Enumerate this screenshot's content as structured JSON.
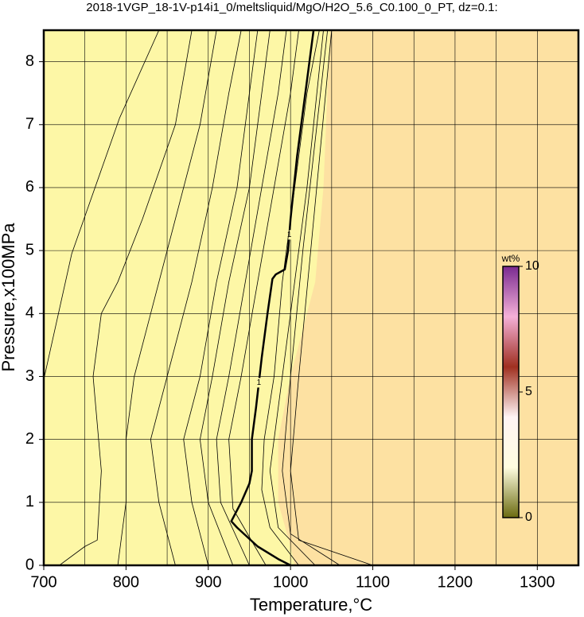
{
  "chart_data": {
    "type": "contour",
    "title": "2018-1VGP_18-1V-p14i1_0/meltsliquid/MgO/H2O_5.6_C0.100_0_PT, dz=0.1:",
    "x_label": "Temperature,°C",
    "y_label": "Pressure,x100MPa",
    "xlim": [
      700,
      1350
    ],
    "ylim": [
      0,
      8.5
    ],
    "xticks": [
      700,
      800,
      900,
      1000,
      1100,
      1200,
      1300
    ],
    "yticks": [
      0,
      1,
      2,
      3,
      4,
      5,
      6,
      7,
      8
    ],
    "x_grid": [
      750,
      850,
      950,
      1050,
      1150,
      1250,
      1350
    ],
    "grid": true,
    "background_color": "#fdf7a6",
    "regions": [
      {
        "color": "#fde1a2",
        "x": [
          1048,
          1040,
          1030,
          1000,
          985,
          985,
          1000,
          1005,
          1350,
          1350
        ],
        "y": [
          8.5,
          6,
          4.5,
          3,
          2,
          1,
          0.3,
          0,
          0,
          8.5
        ]
      }
    ],
    "contours": [
      {
        "label": "1",
        "width": 2.5,
        "x": [
          1028,
          1018,
          1008,
          1000,
          997,
          993,
          982,
          978,
          972,
          965,
          958,
          953,
          953,
          950,
          940,
          928,
          935,
          960,
          985,
          1000
        ],
        "y": [
          8.5,
          7.5,
          6.5,
          5.5,
          5.0,
          4.7,
          4.62,
          4.55,
          4.0,
          3.3,
          2.5,
          2.0,
          1.5,
          1.3,
          1.0,
          0.7,
          0.6,
          0.3,
          0.1,
          0
        ]
      },
      {
        "x": [
          700,
          734,
          792,
          840
        ],
        "y": [
          2.95,
          4.95,
          7.1,
          8.5
        ]
      },
      {
        "x": [
          719,
          750,
          765,
          770,
          760,
          770,
          790,
          820,
          860,
          880
        ],
        "y": [
          0,
          0.3,
          0.4,
          1.5,
          3,
          4,
          4.5,
          5.5,
          7,
          8.5
        ]
      },
      {
        "x": [
          790,
          800,
          800,
          810,
          830,
          860,
          890,
          910
        ],
        "y": [
          0,
          1,
          2,
          3,
          4,
          5.5,
          7,
          8.5
        ]
      },
      {
        "x": [
          860,
          840,
          830,
          850,
          880,
          905,
          925,
          940
        ],
        "y": [
          0,
          1,
          2,
          3,
          4.5,
          6,
          7.5,
          8.5
        ]
      },
      {
        "x": [
          900,
          880,
          870,
          890,
          910,
          935,
          950,
          960
        ],
        "y": [
          0,
          1,
          2,
          3,
          4.5,
          6,
          7.5,
          8.5
        ]
      },
      {
        "x": [
          930,
          900,
          890,
          905,
          925,
          950,
          965,
          975
        ],
        "y": [
          0,
          1,
          2,
          3,
          4.5,
          6,
          7.5,
          8.5
        ]
      },
      {
        "x": [
          950,
          915,
          910,
          925,
          945,
          965,
          985,
          995
        ],
        "y": [
          0,
          1,
          2,
          3,
          4.5,
          6,
          7.5,
          8.5
        ]
      },
      {
        "x": [
          970,
          930,
          925,
          940,
          960,
          980,
          1000,
          1010
        ],
        "y": [
          0,
          0.9,
          2,
          3,
          4.5,
          6,
          7.5,
          8.5
        ]
      },
      {
        "x": [
          1010,
          975,
          965,
          968,
          980,
          990,
          1005,
          1020,
          1035
        ],
        "y": [
          0,
          0.6,
          1.2,
          2,
          3,
          4.5,
          6,
          7.5,
          8.5
        ]
      },
      {
        "x": [
          1030,
          985,
          975,
          990,
          1005,
          1020,
          1040
        ],
        "y": [
          0,
          0.6,
          1.5,
          3,
          4.5,
          6,
          8.5
        ]
      },
      {
        "x": [
          1060,
          1000,
          990,
          1000,
          1015,
          1045
        ],
        "y": [
          0,
          0.5,
          1.5,
          3,
          5,
          8.5
        ]
      },
      {
        "x": [
          1100,
          1010,
          1000,
          1010,
          1050
        ],
        "y": [
          0,
          0.4,
          1.5,
          3,
          8.5
        ]
      }
    ],
    "colorbar": {
      "label": "wt%",
      "lim": [
        0,
        10
      ],
      "ticks": [
        0,
        5,
        10
      ],
      "colors": [
        "#6b6b10",
        "#fffde0",
        "#fff4f4",
        "#a03020",
        "#f4b0d8",
        "#7a2a90"
      ]
    }
  }
}
